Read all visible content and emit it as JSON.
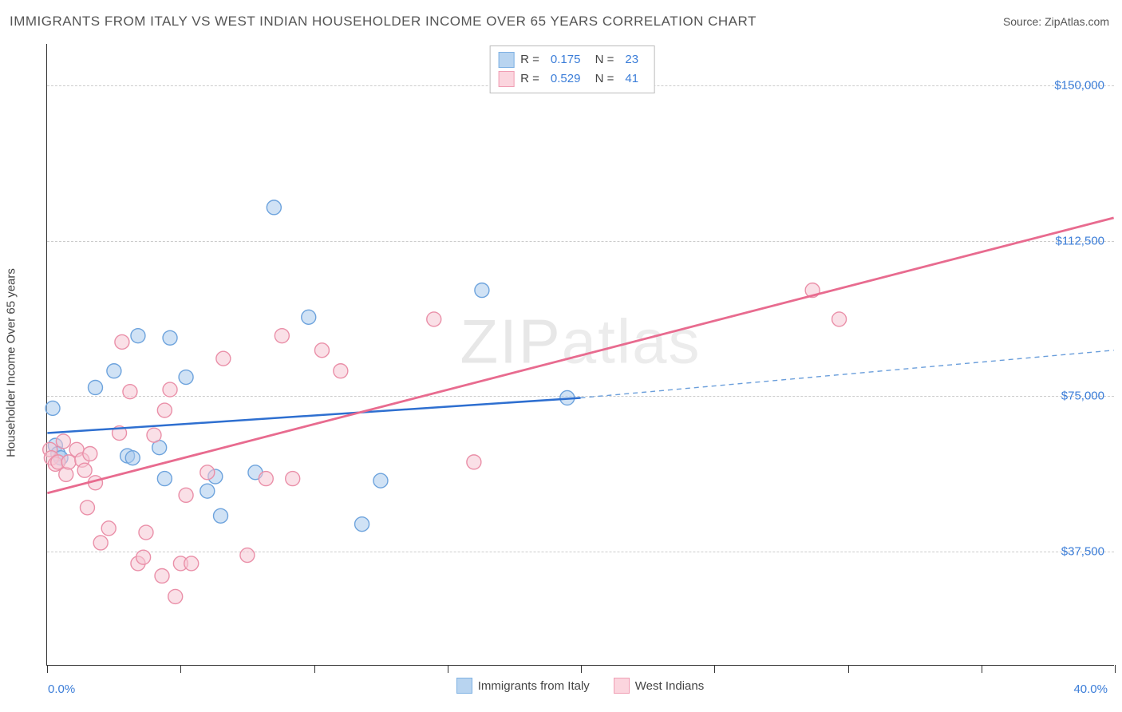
{
  "header": {
    "title": "IMMIGRANTS FROM ITALY VS WEST INDIAN HOUSEHOLDER INCOME OVER 65 YEARS CORRELATION CHART",
    "source_label": "Source: ZipAtlas.com"
  },
  "watermark": {
    "text_bold": "ZIP",
    "text_thin": "atlas"
  },
  "chart": {
    "type": "scatter",
    "ylabel": "Householder Income Over 65 years",
    "xlim": [
      0,
      40
    ],
    "xlim_labels": [
      "0.0%",
      "40.0%"
    ],
    "ylim": [
      10000,
      160000
    ],
    "yticks": [
      37500,
      75000,
      112500,
      150000
    ],
    "ytick_labels": [
      "$37,500",
      "$75,000",
      "$112,500",
      "$150,000"
    ],
    "xtick_positions": [
      0,
      5,
      10,
      15,
      20,
      25,
      30,
      35,
      40
    ],
    "grid_color": "#cccccc",
    "axis_color": "#333333",
    "background_color": "#ffffff",
    "point_radius": 9,
    "point_opacity": 0.55,
    "series": [
      {
        "name": "Immigrants from Italy",
        "color_fill": "#a9cbec",
        "color_stroke": "#6da3dd",
        "swatch_fill": "#b8d4f0",
        "swatch_border": "#7eb1e3",
        "R": "0.175",
        "N": "23",
        "regression": {
          "solid": {
            "x1": 0,
            "y1": 66000,
            "x2": 20,
            "y2": 74500,
            "color": "#2e6fd0",
            "width": 2.5
          },
          "dashed": {
            "x1": 20,
            "y1": 74500,
            "x2": 40,
            "y2": 86000,
            "color": "#6a9edb",
            "width": 1.4,
            "dash": "6,5"
          }
        },
        "points": [
          [
            0.2,
            72000
          ],
          [
            0.3,
            63000
          ],
          [
            0.4,
            61000
          ],
          [
            0.5,
            60000
          ],
          [
            1.8,
            77000
          ],
          [
            2.5,
            81000
          ],
          [
            3.0,
            60500
          ],
          [
            3.2,
            60000
          ],
          [
            3.4,
            89500
          ],
          [
            4.2,
            62500
          ],
          [
            4.4,
            55000
          ],
          [
            4.6,
            89000
          ],
          [
            5.2,
            79500
          ],
          [
            6.0,
            52000
          ],
          [
            6.3,
            55500
          ],
          [
            6.5,
            46000
          ],
          [
            7.8,
            56500
          ],
          [
            8.5,
            120500
          ],
          [
            9.8,
            94000
          ],
          [
            11.8,
            44000
          ],
          [
            12.5,
            54500
          ],
          [
            16.3,
            100500
          ],
          [
            19.5,
            74500
          ]
        ]
      },
      {
        "name": "West Indians",
        "color_fill": "#f6c6d3",
        "color_stroke": "#ea8fa8",
        "swatch_fill": "#fbd5de",
        "swatch_border": "#f09eb4",
        "R": "0.529",
        "N": "41",
        "regression": {
          "solid": {
            "x1": 0,
            "y1": 51500,
            "x2": 40,
            "y2": 118000,
            "color": "#e86b8f",
            "width": 2.8
          }
        },
        "points": [
          [
            0.1,
            62000
          ],
          [
            0.15,
            60000
          ],
          [
            0.3,
            58500
          ],
          [
            0.4,
            59000
          ],
          [
            0.6,
            64000
          ],
          [
            0.7,
            56000
          ],
          [
            0.8,
            59000
          ],
          [
            1.1,
            62000
          ],
          [
            1.3,
            59500
          ],
          [
            1.4,
            57000
          ],
          [
            1.5,
            48000
          ],
          [
            1.6,
            61000
          ],
          [
            1.8,
            54000
          ],
          [
            2.0,
            39500
          ],
          [
            2.3,
            43000
          ],
          [
            2.7,
            66000
          ],
          [
            2.8,
            88000
          ],
          [
            3.1,
            76000
          ],
          [
            3.4,
            34500
          ],
          [
            3.6,
            36000
          ],
          [
            3.7,
            42000
          ],
          [
            4.0,
            65500
          ],
          [
            4.3,
            31500
          ],
          [
            4.4,
            71500
          ],
          [
            4.6,
            76500
          ],
          [
            4.8,
            26500
          ],
          [
            5.0,
            34500
          ],
          [
            5.2,
            51000
          ],
          [
            5.4,
            34500
          ],
          [
            6.0,
            56500
          ],
          [
            6.6,
            84000
          ],
          [
            7.5,
            36500
          ],
          [
            8.2,
            55000
          ],
          [
            8.8,
            89500
          ],
          [
            9.2,
            55000
          ],
          [
            10.3,
            86000
          ],
          [
            11.0,
            81000
          ],
          [
            14.5,
            93500
          ],
          [
            16.0,
            59000
          ],
          [
            28.7,
            100500
          ],
          [
            29.7,
            93500
          ]
        ]
      }
    ],
    "bottom_legend": [
      {
        "label": "Immigrants from Italy",
        "swatch_fill": "#b8d4f0",
        "swatch_border": "#7eb1e3"
      },
      {
        "label": "West Indians",
        "swatch_fill": "#fbd5de",
        "swatch_border": "#f09eb4"
      }
    ]
  }
}
